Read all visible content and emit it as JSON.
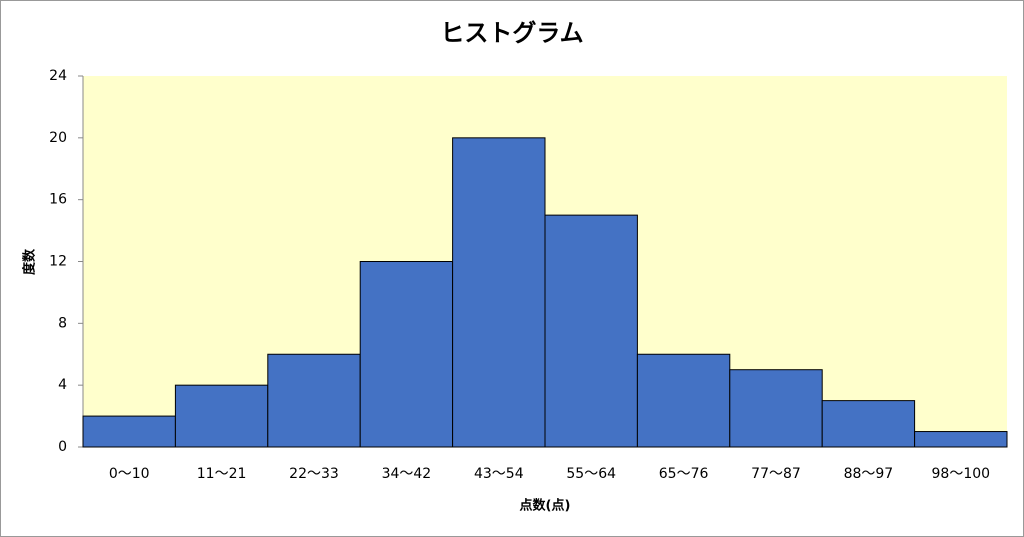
{
  "chart_data": {
    "type": "bar",
    "title": "ヒストグラム",
    "x_label": "点数(点)",
    "y_label": "度数",
    "categories": [
      "0～10",
      "11～21",
      "22～33",
      "34～42",
      "43～54",
      "55～64",
      "65～76",
      "77～87",
      "88～97",
      "98～100"
    ],
    "values": [
      2,
      4,
      6,
      12,
      20,
      15,
      6,
      5,
      3,
      1
    ],
    "color": "#4472c4",
    "background": "#ffffcc",
    "ylim": [
      0,
      24
    ],
    "yticks": [
      0,
      4,
      8,
      12,
      16,
      20,
      24
    ],
    "grid": false
  }
}
